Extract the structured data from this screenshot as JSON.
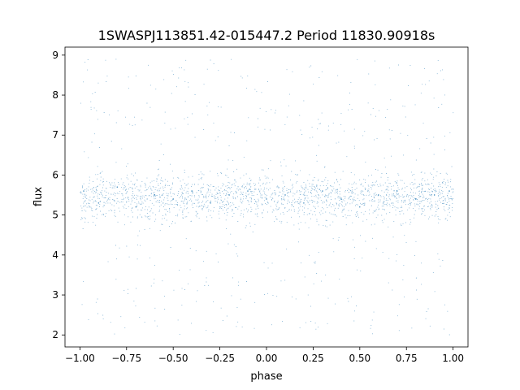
{
  "chart_data": {
    "type": "scatter",
    "title": "1SWASPJ113851.42-015447.2 Period 11830.90918s",
    "xlabel": "phase",
    "ylabel": "flux",
    "xlim": [
      -1.08,
      1.08
    ],
    "ylim": [
      1.7,
      9.2
    ],
    "xticks": [
      -1.0,
      -0.75,
      -0.5,
      -0.25,
      0.0,
      0.25,
      0.5,
      0.75,
      1.0
    ],
    "xtick_labels": [
      "−1.00",
      "−0.75",
      "−0.50",
      "−0.25",
      "0.00",
      "0.25",
      "0.50",
      "0.75",
      "1.00"
    ],
    "yticks": [
      2,
      3,
      4,
      5,
      6,
      7,
      8,
      9
    ],
    "ytick_labels": [
      "2",
      "3",
      "4",
      "5",
      "6",
      "7",
      "8",
      "9"
    ],
    "grid": false,
    "legend": false,
    "point_color": "#1f77b4",
    "series": [
      {
        "phase_range": [
          -1.0,
          1.0
        ],
        "flux_range": [
          2.0,
          8.9
        ],
        "flux_median": 5.45,
        "core_band": [
          4.8,
          6.3
        ],
        "approx_points": 50000,
        "points": [
          [
            -0.98,
            5.6
          ],
          [
            -0.9,
            5.3
          ],
          [
            -0.8,
            5.7
          ],
          [
            -0.7,
            5.2
          ],
          [
            -0.6,
            5.5
          ],
          [
            -0.5,
            5.4
          ],
          [
            -0.4,
            5.6
          ],
          [
            -0.3,
            5.3
          ],
          [
            -0.2,
            5.5
          ],
          [
            -0.1,
            5.6
          ],
          [
            0.0,
            5.4
          ],
          [
            0.1,
            5.5
          ],
          [
            0.2,
            5.3
          ],
          [
            0.3,
            5.6
          ],
          [
            0.4,
            5.4
          ],
          [
            0.5,
            5.2
          ],
          [
            0.6,
            5.5
          ],
          [
            0.7,
            5.6
          ],
          [
            0.8,
            5.4
          ],
          [
            0.9,
            5.5
          ],
          [
            0.98,
            5.6
          ]
        ]
      }
    ]
  }
}
